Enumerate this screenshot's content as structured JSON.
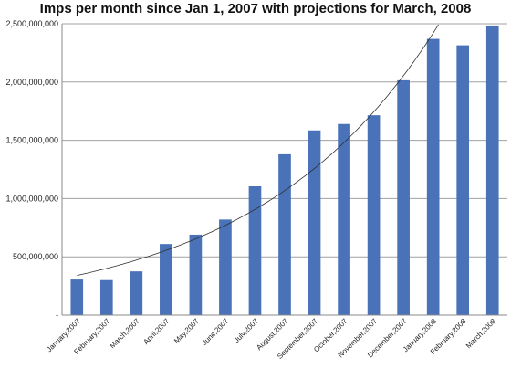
{
  "chart_data": {
    "type": "bar",
    "title": "Imps per month since Jan 1, 2007 with projections for March, 2008",
    "xlabel": "",
    "ylabel": "",
    "ylim": [
      0,
      2500000000
    ],
    "grid": true,
    "legend": "none",
    "y_tick_values": [
      0,
      500000000,
      1000000000,
      1500000000,
      2000000000,
      2500000000
    ],
    "y_tick_labels": [
      "-",
      "500,000,000",
      "1,000,000,000",
      "1,500,000,000",
      "2,000,000,000",
      "2,500,000,000"
    ],
    "categories": [
      "January,2007",
      "February,2007",
      "March,2007",
      "April,2007",
      "May,2007",
      "June,2007",
      "July,2007",
      "August,2007",
      "September,2007",
      "October,2007",
      "November,2007",
      "December,2007",
      "January,2008",
      "February,2008",
      "March,2008"
    ],
    "values": [
      305000000,
      300000000,
      375000000,
      610000000,
      690000000,
      820000000,
      1105000000,
      1380000000,
      1585000000,
      1640000000,
      1715000000,
      2015000000,
      2370000000,
      2315000000,
      2485000000
    ],
    "trendline": {
      "type": "exponential",
      "start_value": 340000000,
      "end_value": 2500000000
    },
    "colors": {
      "bar": "#4a72b8",
      "grid": "#a0a0a0",
      "axis": "#888888",
      "trend": "#303030"
    }
  }
}
